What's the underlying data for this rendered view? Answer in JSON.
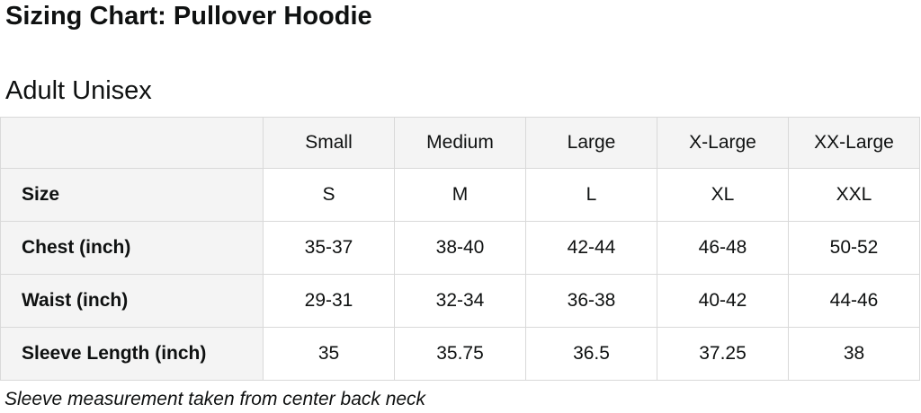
{
  "page": {
    "title": "Sizing Chart: Pullover Hoodie",
    "section_title": "Adult Unisex",
    "footnote": "Sleeve measurement taken from center back neck"
  },
  "table": {
    "column_headers": [
      "",
      "Small",
      "Medium",
      "Large",
      "X-Large",
      "XX-Large"
    ],
    "rows": [
      {
        "label": "Size",
        "values": [
          "S",
          "M",
          "L",
          "XL",
          "XXL"
        ]
      },
      {
        "label": "Chest (inch)",
        "values": [
          "35-37",
          "38-40",
          "42-44",
          "46-48",
          "50-52"
        ]
      },
      {
        "label": "Waist (inch)",
        "values": [
          "29-31",
          "32-34",
          "36-38",
          "40-42",
          "44-46"
        ]
      },
      {
        "label": "Sleeve Length (inch)",
        "values": [
          "35",
          "35.75",
          "36.5",
          "37.25",
          "38"
        ]
      }
    ]
  },
  "colors": {
    "header_bg": "#f4f4f4",
    "label_col_bg": "#f4f4f4",
    "border": "#d9d9d9",
    "text": "#111111"
  }
}
